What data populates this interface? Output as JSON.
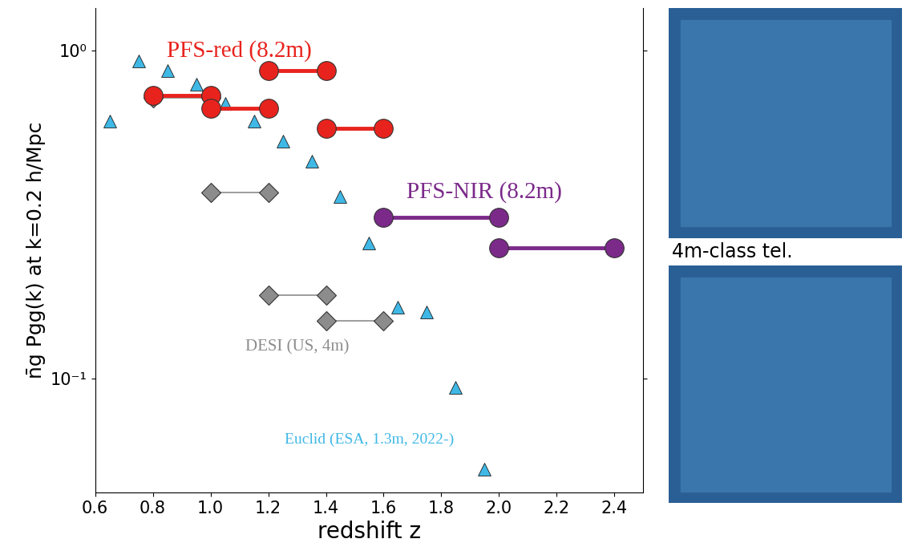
{
  "chart_data": {
    "type": "scatter",
    "x_label": "redshift z",
    "y_label": "n̄g Pgg(k) at k=0.2 h/Mpc",
    "log": "y",
    "grid": false,
    "xlim": [
      0.6,
      2.5
    ],
    "ylim": [
      0.045,
      1.35
    ],
    "xticks": [
      0.6,
      0.8,
      {
        "value": 1,
        "label": "1.0"
      },
      1.2,
      1.4,
      1.6,
      1.8,
      {
        "value": 2,
        "label": "2.0"
      },
      2.2,
      2.4
    ],
    "yticks": [
      {
        "value": 0.1,
        "label": "10⁻¹"
      },
      {
        "value": 1,
        "label": "10⁰"
      }
    ],
    "annotations": [
      "4m-class tel."
    ],
    "series": [
      {
        "name": "Euclid (ESA, 1.3m, 2022-)",
        "type": "scatter",
        "color": "#3fb8e6",
        "marker": "^",
        "x": [
          0.65,
          0.75,
          0.85,
          0.95,
          1.05,
          1.15,
          1.25,
          1.35,
          1.45,
          1.55,
          1.65,
          1.75,
          1.85,
          1.95
        ],
        "values": [
          0.61,
          0.93,
          0.87,
          0.79,
          0.69,
          0.61,
          0.53,
          0.46,
          0.36,
          0.26,
          0.165,
          0.16,
          0.094,
          0.053
        ]
      },
      {
        "name": "DESI (US, 4m)",
        "type": "range",
        "color": "#8c8c8c",
        "marker": "D",
        "x_low": [
          0.8,
          1.0,
          1.2,
          1.4
        ],
        "x_high": [
          1.0,
          1.2,
          1.4,
          1.6
        ],
        "values": [
          0.72,
          0.37,
          0.18,
          0.15
        ]
      },
      {
        "name": "PFS-red (8.2m)",
        "type": "range",
        "color": "#e8231d",
        "marker": "o",
        "x_low": [
          0.8,
          1.0,
          1.2,
          1.4
        ],
        "x_high": [
          1.0,
          1.2,
          1.4,
          1.6
        ],
        "values": [
          0.73,
          0.67,
          0.87,
          0.58
        ]
      },
      {
        "name": "PFS-NIR (8.2m)",
        "type": "range",
        "color": "#7b2a8a",
        "marker": "o",
        "x_low": [
          1.6,
          2.0
        ],
        "x_high": [
          2.0,
          2.4
        ],
        "values": [
          0.31,
          0.25
        ]
      }
    ]
  }
}
